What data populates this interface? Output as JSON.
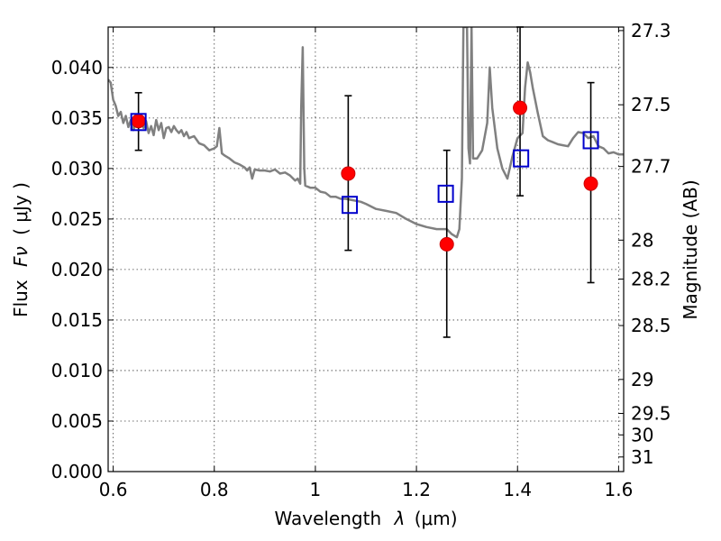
{
  "chart_data": {
    "type": "scatter",
    "xlabel_text": "Wavelength",
    "xlabel_symbol": "λ",
    "xlabel_unit": "(μm)",
    "ylabel_text": "Flux",
    "ylabel_symbol": "Fν",
    "ylabel_unit": "( μJy )",
    "y2label": "Magnitude (AB)",
    "xlim": [
      0.59,
      1.61
    ],
    "ylim": [
      0.0,
      0.044
    ],
    "xticks": [
      0.6,
      0.8,
      1.0,
      1.2,
      1.4,
      1.6
    ],
    "xtick_labels": [
      "0.6",
      "0.8",
      "1",
      "1.2",
      "1.4",
      "1.6"
    ],
    "yticks": [
      0.0,
      0.005,
      0.01,
      0.015,
      0.02,
      0.025,
      0.03,
      0.035,
      0.04
    ],
    "ytick_labels": [
      "0.000",
      "0.005",
      "0.010",
      "0.015",
      "0.020",
      "0.025",
      "0.030",
      "0.035",
      "0.040"
    ],
    "y2ticks": [
      27.3,
      27.5,
      27.7,
      28,
      28.2,
      28.5,
      29,
      29.5,
      30,
      31
    ],
    "y2tick_labels": [
      "27.3",
      "27.5",
      "27.7",
      "28",
      "28.2",
      "28.5",
      "29",
      "29.5",
      "30",
      "31"
    ],
    "grid": true,
    "series": [
      {
        "kind": "line",
        "color": "#808080",
        "points": [
          [
            0.59,
            0.0388
          ],
          [
            0.595,
            0.0385
          ],
          [
            0.6,
            0.0368
          ],
          [
            0.605,
            0.0362
          ],
          [
            0.61,
            0.0352
          ],
          [
            0.615,
            0.0356
          ],
          [
            0.62,
            0.0345
          ],
          [
            0.625,
            0.0352
          ],
          [
            0.63,
            0.0341
          ],
          [
            0.635,
            0.0348
          ],
          [
            0.64,
            0.0338
          ],
          [
            0.645,
            0.0345
          ],
          [
            0.65,
            0.035
          ],
          [
            0.655,
            0.0345
          ],
          [
            0.66,
            0.034
          ],
          [
            0.665,
            0.0347
          ],
          [
            0.67,
            0.0335
          ],
          [
            0.675,
            0.0342
          ],
          [
            0.68,
            0.0333
          ],
          [
            0.685,
            0.0348
          ],
          [
            0.69,
            0.0338
          ],
          [
            0.695,
            0.0345
          ],
          [
            0.7,
            0.033
          ],
          [
            0.705,
            0.034
          ],
          [
            0.71,
            0.0341
          ],
          [
            0.715,
            0.0336
          ],
          [
            0.72,
            0.0342
          ],
          [
            0.725,
            0.0338
          ],
          [
            0.73,
            0.0335
          ],
          [
            0.735,
            0.0338
          ],
          [
            0.74,
            0.0332
          ],
          [
            0.745,
            0.0336
          ],
          [
            0.75,
            0.033
          ],
          [
            0.76,
            0.0332
          ],
          [
            0.77,
            0.0325
          ],
          [
            0.78,
            0.0323
          ],
          [
            0.79,
            0.0318
          ],
          [
            0.8,
            0.032
          ],
          [
            0.805,
            0.0322
          ],
          [
            0.81,
            0.034
          ],
          [
            0.815,
            0.0315
          ],
          [
            0.82,
            0.0313
          ],
          [
            0.83,
            0.031
          ],
          [
            0.84,
            0.0306
          ],
          [
            0.85,
            0.0304
          ],
          [
            0.86,
            0.0301
          ],
          [
            0.865,
            0.0298
          ],
          [
            0.87,
            0.0301
          ],
          [
            0.875,
            0.029
          ],
          [
            0.88,
            0.0299
          ],
          [
            0.89,
            0.0298
          ],
          [
            0.9,
            0.0298
          ],
          [
            0.91,
            0.0297
          ],
          [
            0.92,
            0.0299
          ],
          [
            0.93,
            0.0295
          ],
          [
            0.94,
            0.0296
          ],
          [
            0.95,
            0.0293
          ],
          [
            0.96,
            0.0288
          ],
          [
            0.965,
            0.029
          ],
          [
            0.97,
            0.0285
          ],
          [
            0.972,
            0.036
          ],
          [
            0.975,
            0.042
          ],
          [
            0.978,
            0.03
          ],
          [
            0.98,
            0.0283
          ],
          [
            0.99,
            0.0281
          ],
          [
            1.0,
            0.0281
          ],
          [
            1.01,
            0.0277
          ],
          [
            1.02,
            0.0276
          ],
          [
            1.03,
            0.0272
          ],
          [
            1.04,
            0.0272
          ],
          [
            1.05,
            0.027
          ],
          [
            1.06,
            0.027
          ],
          [
            1.07,
            0.0269
          ],
          [
            1.08,
            0.0268
          ],
          [
            1.09,
            0.0267
          ],
          [
            1.1,
            0.0265
          ],
          [
            1.12,
            0.026
          ],
          [
            1.14,
            0.0258
          ],
          [
            1.16,
            0.0256
          ],
          [
            1.18,
            0.025
          ],
          [
            1.2,
            0.0245
          ],
          [
            1.22,
            0.0242
          ],
          [
            1.24,
            0.024
          ],
          [
            1.26,
            0.024
          ],
          [
            1.27,
            0.0235
          ],
          [
            1.28,
            0.0232
          ],
          [
            1.285,
            0.024
          ],
          [
            1.29,
            0.029
          ],
          [
            1.293,
            0.044
          ],
          [
            1.296,
            0.044
          ],
          [
            1.3,
            0.044
          ],
          [
            1.303,
            0.032
          ],
          [
            1.306,
            0.0305
          ],
          [
            1.309,
            0.044
          ],
          [
            1.312,
            0.031
          ],
          [
            1.32,
            0.031
          ],
          [
            1.33,
            0.0318
          ],
          [
            1.34,
            0.0345
          ],
          [
            1.345,
            0.04
          ],
          [
            1.35,
            0.036
          ],
          [
            1.36,
            0.032
          ],
          [
            1.37,
            0.03
          ],
          [
            1.38,
            0.029
          ],
          [
            1.39,
            0.0312
          ],
          [
            1.4,
            0.033
          ],
          [
            1.41,
            0.0335
          ],
          [
            1.415,
            0.038
          ],
          [
            1.42,
            0.0405
          ],
          [
            1.425,
            0.0395
          ],
          [
            1.43,
            0.038
          ],
          [
            1.44,
            0.0355
          ],
          [
            1.45,
            0.0332
          ],
          [
            1.46,
            0.0328
          ],
          [
            1.47,
            0.0326
          ],
          [
            1.48,
            0.0324
          ],
          [
            1.49,
            0.0323
          ],
          [
            1.5,
            0.0322
          ],
          [
            1.51,
            0.033
          ],
          [
            1.52,
            0.0336
          ],
          [
            1.53,
            0.0335
          ],
          [
            1.54,
            0.033
          ],
          [
            1.55,
            0.0332
          ],
          [
            1.56,
            0.0322
          ],
          [
            1.57,
            0.032
          ],
          [
            1.58,
            0.0315
          ],
          [
            1.59,
            0.0316
          ],
          [
            1.6,
            0.0314
          ],
          [
            1.61,
            0.0314
          ]
        ]
      },
      {
        "kind": "errorbar",
        "marker": "circle",
        "color": "#ff0000",
        "x": [
          0.65,
          1.065,
          1.26,
          1.405,
          1.545
        ],
        "y": [
          0.0347,
          0.0295,
          0.0225,
          0.036,
          0.0285
        ],
        "yerr_low": [
          0.0318,
          0.0219,
          0.0133,
          0.0273,
          0.0187
        ],
        "yerr_high": [
          0.0375,
          0.0372,
          0.0318,
          0.044,
          0.0385
        ]
      },
      {
        "kind": "scatter",
        "marker": "square-open",
        "color": "#0000cc",
        "x": [
          0.65,
          1.068,
          1.258,
          1.407,
          1.545
        ],
        "y": [
          0.0346,
          0.0264,
          0.0275,
          0.031,
          0.0328
        ]
      }
    ]
  }
}
